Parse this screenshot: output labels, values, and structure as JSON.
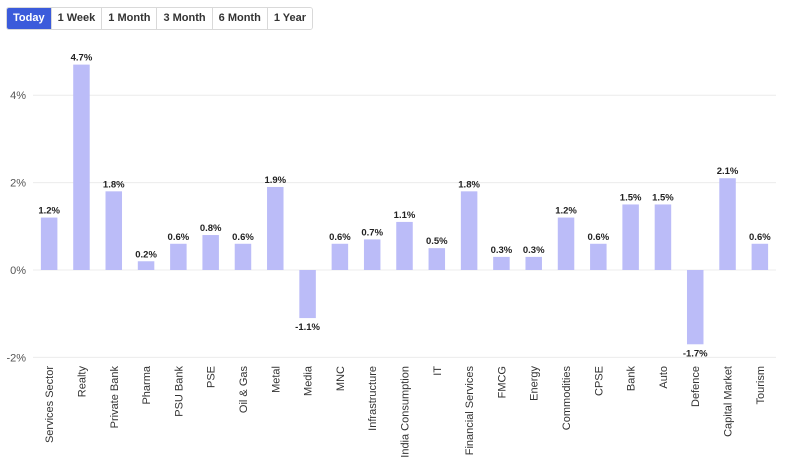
{
  "range_tabs": {
    "items": [
      "Today",
      "1 Week",
      "1 Month",
      "3 Month",
      "6 Month",
      "1 Year"
    ],
    "active": "Today"
  },
  "chart_data": {
    "type": "bar",
    "title": "",
    "xlabel": "",
    "ylabel": "",
    "ylim": [
      -2,
      5
    ],
    "y_ticks": [
      -2,
      0,
      2,
      4
    ],
    "y_tick_labels": [
      "-2%",
      "0%",
      "2%",
      "4%"
    ],
    "grid": true,
    "bar_color": "#bbbcf8",
    "categories": [
      "Services Sector",
      "Realty",
      "Private Bank",
      "Pharma",
      "PSU Bank",
      "PSE",
      "Oil & Gas",
      "Metal",
      "Media",
      "MNC",
      "Infrastructure",
      "India Consumption",
      "IT",
      "Financial Services",
      "FMCG",
      "Energy",
      "Commodities",
      "CPSE",
      "Bank",
      "Auto",
      "Defence",
      "Capital Market",
      "Tourism"
    ],
    "values": [
      1.2,
      4.7,
      1.8,
      0.2,
      0.6,
      0.8,
      0.6,
      1.9,
      -1.1,
      0.6,
      0.7,
      1.1,
      0.5,
      1.8,
      0.3,
      0.3,
      1.2,
      0.6,
      1.5,
      1.5,
      -1.7,
      2.1,
      0.6
    ],
    "value_labels": [
      "1.2%",
      "4.7%",
      "1.8%",
      "0.2%",
      "0.6%",
      "0.8%",
      "0.6%",
      "1.9%",
      "-1.1%",
      "0.6%",
      "0.7%",
      "1.1%",
      "0.5%",
      "1.8%",
      "0.3%",
      "0.3%",
      "1.2%",
      "0.6%",
      "1.5%",
      "1.5%",
      "-1.7%",
      "2.1%",
      "0.6%"
    ]
  }
}
